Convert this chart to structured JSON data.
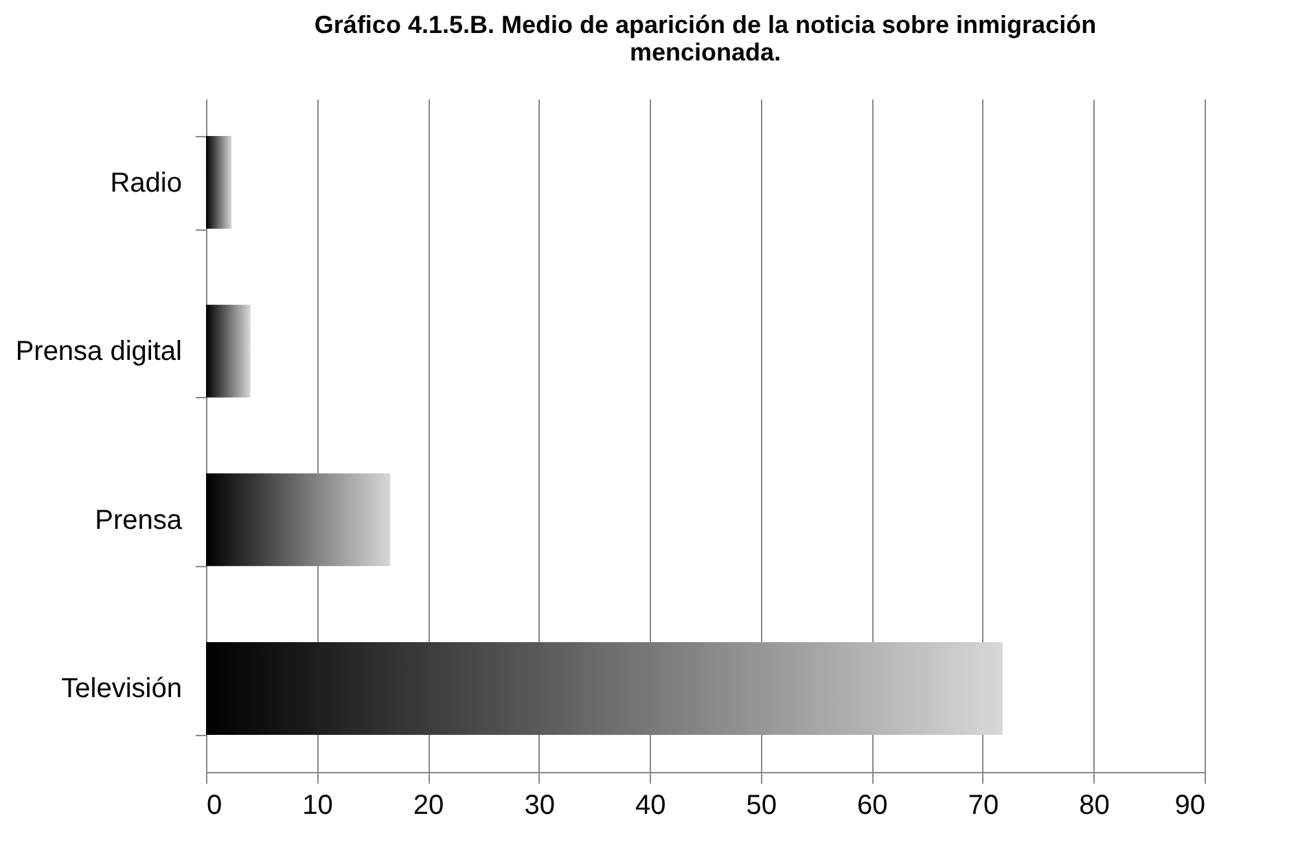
{
  "chart_data": {
    "type": "bar",
    "orientation": "horizontal",
    "title": "Gráfico 4.1.5.B. Medio de aparición de la noticia sobre inmigración mencionada.",
    "categories": [
      "Radio",
      "Prensa digital",
      "Prensa",
      "Televisión"
    ],
    "values": [
      2.3,
      4,
      16.6,
      71.8
    ],
    "color": "#000000",
    "xlim": [
      0,
      90
    ],
    "xticks": [
      0,
      10,
      20,
      30,
      40,
      50,
      60,
      70,
      80,
      90
    ],
    "grid": "x"
  }
}
